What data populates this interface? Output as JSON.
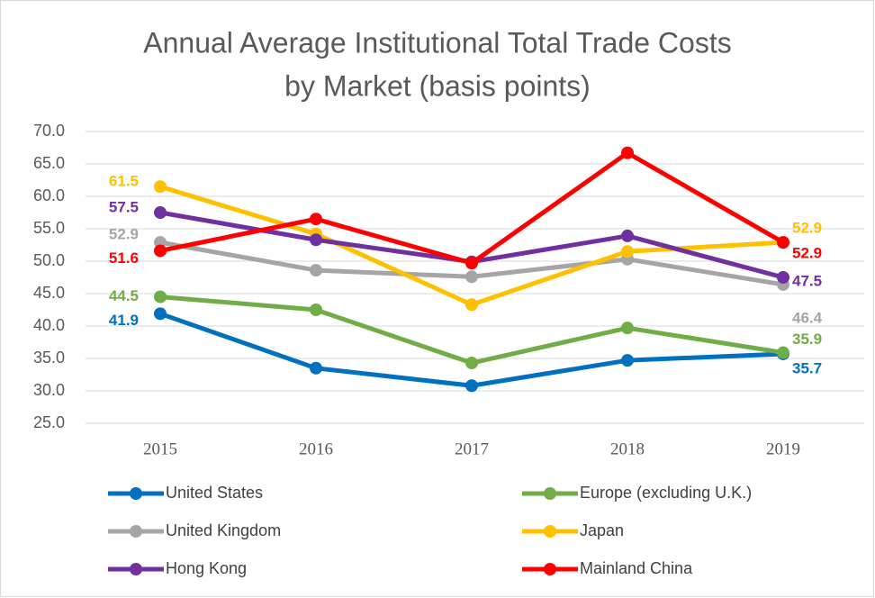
{
  "chart_data": {
    "type": "line",
    "title": [
      "Annual Average Institutional Total Trade Costs",
      "by Market (basis points)"
    ],
    "categories": [
      "2015",
      "2016",
      "2017",
      "2018",
      "2019"
    ],
    "ylim": [
      25,
      70
    ],
    "yticks": [
      {
        "value": 25,
        "label": "25.0"
      },
      {
        "value": 30,
        "label": "30.0"
      },
      {
        "value": 35,
        "label": "35.0"
      },
      {
        "value": 40,
        "label": "40.0"
      },
      {
        "value": 45,
        "label": "45.0"
      },
      {
        "value": 50,
        "label": "50.0"
      },
      {
        "value": 55,
        "label": "55.0"
      },
      {
        "value": 60,
        "label": "60.0"
      },
      {
        "value": 65,
        "label": "65.0"
      },
      {
        "value": 70,
        "label": "70.0"
      }
    ],
    "grid": true,
    "legend": "bottom",
    "series": [
      {
        "name": "United States",
        "color": "#0070c0",
        "values": [
          41.9,
          33.5,
          30.8,
          34.7,
          35.7
        ]
      },
      {
        "name": "Europe (excluding U.K.)",
        "color": "#70ad47",
        "values": [
          44.5,
          42.5,
          34.3,
          39.7,
          35.9
        ]
      },
      {
        "name": "United Kingdom",
        "color": "#a5a5a5",
        "values": [
          52.9,
          48.6,
          47.6,
          50.3,
          46.4
        ]
      },
      {
        "name": "Japan",
        "color": "#ffc000",
        "values": [
          61.5,
          54.2,
          43.3,
          51.5,
          52.9
        ]
      },
      {
        "name": "Hong Kong",
        "color": "#7030a0",
        "values": [
          57.5,
          53.3,
          49.9,
          53.9,
          47.5
        ]
      },
      {
        "name": "Mainland China",
        "color": "#ff0000",
        "values": [
          51.6,
          56.5,
          49.7,
          66.7,
          52.9
        ]
      }
    ]
  }
}
